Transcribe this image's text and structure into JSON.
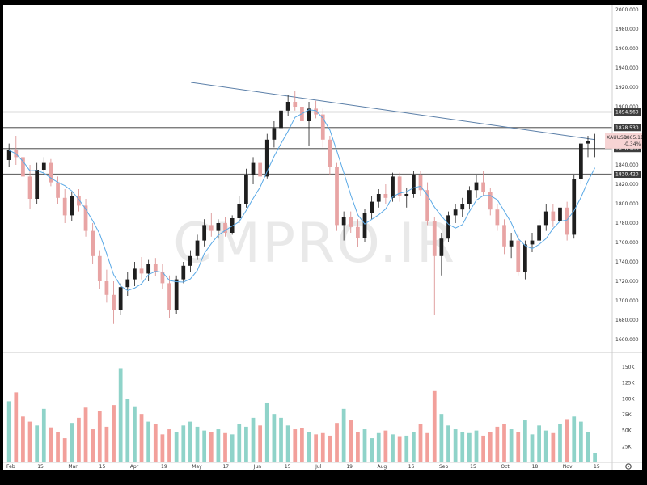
{
  "chart_data": {
    "type": "candlestick",
    "symbol": "XAUUSD",
    "last_price": "1865.115",
    "change_pct": "-0.34%",
    "watermark": "CMPRO.IR",
    "ylim": [
      1650,
      2000
    ],
    "y_ticks": [
      "2000.000",
      "1980.000",
      "1960.000",
      "1940.000",
      "1920.000",
      "1900.000",
      "1880.000",
      "1860.000",
      "1840.000",
      "1820.000",
      "1800.000",
      "1780.000",
      "1760.000",
      "1740.000",
      "1720.000",
      "1700.000",
      "1680.000",
      "1660.000"
    ],
    "x_ticks": [
      "Feb",
      "15",
      "Mar",
      "15",
      "Apr",
      "19",
      "May",
      "17",
      "Jun",
      "15",
      "Jul",
      "19",
      "Aug",
      "16",
      "Sep",
      "15",
      "Oct",
      "18",
      "Nov",
      "15"
    ],
    "volume_ticks": [
      "150K",
      "125K",
      "100K",
      "75K",
      "50K",
      "25K"
    ],
    "volume_max": 160000,
    "levels": [
      {
        "label": "1894.560",
        "value": 1894.56
      },
      {
        "label": "1878.530",
        "value": 1878.53
      },
      {
        "label": "1856.900",
        "value": 1856.9
      },
      {
        "label": "1830.420",
        "value": 1830.42
      }
    ],
    "trendline": {
      "from": [
        0,
        1925
      ],
      "to": [
        84,
        1866
      ]
    },
    "candles": [
      {
        "o": 1845,
        "h": 1862,
        "l": 1838,
        "c": 1855
      },
      {
        "o": 1855,
        "h": 1870,
        "l": 1840,
        "c": 1848
      },
      {
        "o": 1848,
        "h": 1852,
        "l": 1822,
        "c": 1828
      },
      {
        "o": 1828,
        "h": 1840,
        "l": 1795,
        "c": 1805
      },
      {
        "o": 1805,
        "h": 1842,
        "l": 1800,
        "c": 1835
      },
      {
        "o": 1835,
        "h": 1848,
        "l": 1830,
        "c": 1842
      },
      {
        "o": 1842,
        "h": 1846,
        "l": 1818,
        "c": 1822
      },
      {
        "o": 1822,
        "h": 1828,
        "l": 1800,
        "c": 1806
      },
      {
        "o": 1806,
        "h": 1815,
        "l": 1780,
        "c": 1788
      },
      {
        "o": 1788,
        "h": 1812,
        "l": 1782,
        "c": 1808
      },
      {
        "o": 1808,
        "h": 1815,
        "l": 1792,
        "c": 1798
      },
      {
        "o": 1798,
        "h": 1805,
        "l": 1766,
        "c": 1772
      },
      {
        "o": 1772,
        "h": 1780,
        "l": 1738,
        "c": 1746
      },
      {
        "o": 1746,
        "h": 1752,
        "l": 1712,
        "c": 1720
      },
      {
        "o": 1720,
        "h": 1732,
        "l": 1698,
        "c": 1706
      },
      {
        "o": 1706,
        "h": 1720,
        "l": 1676,
        "c": 1690
      },
      {
        "o": 1690,
        "h": 1718,
        "l": 1685,
        "c": 1714
      },
      {
        "o": 1714,
        "h": 1730,
        "l": 1705,
        "c": 1722
      },
      {
        "o": 1722,
        "h": 1740,
        "l": 1715,
        "c": 1733
      },
      {
        "o": 1733,
        "h": 1745,
        "l": 1722,
        "c": 1728
      },
      {
        "o": 1728,
        "h": 1742,
        "l": 1720,
        "c": 1738
      },
      {
        "o": 1738,
        "h": 1744,
        "l": 1725,
        "c": 1730
      },
      {
        "o": 1730,
        "h": 1738,
        "l": 1712,
        "c": 1718
      },
      {
        "o": 1718,
        "h": 1726,
        "l": 1682,
        "c": 1690
      },
      {
        "o": 1690,
        "h": 1726,
        "l": 1686,
        "c": 1722
      },
      {
        "o": 1722,
        "h": 1740,
        "l": 1718,
        "c": 1736
      },
      {
        "o": 1736,
        "h": 1752,
        "l": 1730,
        "c": 1746
      },
      {
        "o": 1746,
        "h": 1768,
        "l": 1742,
        "c": 1762
      },
      {
        "o": 1762,
        "h": 1784,
        "l": 1756,
        "c": 1778
      },
      {
        "o": 1778,
        "h": 1790,
        "l": 1766,
        "c": 1772
      },
      {
        "o": 1772,
        "h": 1784,
        "l": 1764,
        "c": 1780
      },
      {
        "o": 1780,
        "h": 1786,
        "l": 1766,
        "c": 1770
      },
      {
        "o": 1770,
        "h": 1788,
        "l": 1768,
        "c": 1785
      },
      {
        "o": 1785,
        "h": 1808,
        "l": 1780,
        "c": 1800
      },
      {
        "o": 1800,
        "h": 1836,
        "l": 1796,
        "c": 1830
      },
      {
        "o": 1830,
        "h": 1848,
        "l": 1820,
        "c": 1842
      },
      {
        "o": 1842,
        "h": 1850,
        "l": 1822,
        "c": 1828
      },
      {
        "o": 1828,
        "h": 1872,
        "l": 1826,
        "c": 1866
      },
      {
        "o": 1866,
        "h": 1885,
        "l": 1858,
        "c": 1878
      },
      {
        "o": 1878,
        "h": 1900,
        "l": 1872,
        "c": 1896
      },
      {
        "o": 1896,
        "h": 1912,
        "l": 1890,
        "c": 1905
      },
      {
        "o": 1905,
        "h": 1916,
        "l": 1896,
        "c": 1900
      },
      {
        "o": 1900,
        "h": 1910,
        "l": 1880,
        "c": 1885
      },
      {
        "o": 1885,
        "h": 1905,
        "l": 1860,
        "c": 1898
      },
      {
        "o": 1898,
        "h": 1906,
        "l": 1888,
        "c": 1892
      },
      {
        "o": 1892,
        "h": 1898,
        "l": 1858,
        "c": 1866
      },
      {
        "o": 1866,
        "h": 1870,
        "l": 1830,
        "c": 1838
      },
      {
        "o": 1838,
        "h": 1842,
        "l": 1772,
        "c": 1778
      },
      {
        "o": 1778,
        "h": 1792,
        "l": 1762,
        "c": 1786
      },
      {
        "o": 1786,
        "h": 1792,
        "l": 1770,
        "c": 1776
      },
      {
        "o": 1776,
        "h": 1784,
        "l": 1755,
        "c": 1765
      },
      {
        "o": 1765,
        "h": 1795,
        "l": 1760,
        "c": 1790
      },
      {
        "o": 1790,
        "h": 1808,
        "l": 1784,
        "c": 1802
      },
      {
        "o": 1802,
        "h": 1815,
        "l": 1796,
        "c": 1810
      },
      {
        "o": 1810,
        "h": 1820,
        "l": 1800,
        "c": 1806
      },
      {
        "o": 1806,
        "h": 1832,
        "l": 1802,
        "c": 1828
      },
      {
        "o": 1828,
        "h": 1832,
        "l": 1802,
        "c": 1808
      },
      {
        "o": 1808,
        "h": 1816,
        "l": 1796,
        "c": 1810
      },
      {
        "o": 1810,
        "h": 1834,
        "l": 1806,
        "c": 1830
      },
      {
        "o": 1830,
        "h": 1834,
        "l": 1808,
        "c": 1814
      },
      {
        "o": 1814,
        "h": 1822,
        "l": 1778,
        "c": 1782
      },
      {
        "o": 1782,
        "h": 1786,
        "l": 1685,
        "c": 1746
      },
      {
        "o": 1746,
        "h": 1770,
        "l": 1726,
        "c": 1764
      },
      {
        "o": 1764,
        "h": 1792,
        "l": 1760,
        "c": 1788
      },
      {
        "o": 1788,
        "h": 1800,
        "l": 1780,
        "c": 1794
      },
      {
        "o": 1794,
        "h": 1806,
        "l": 1786,
        "c": 1800
      },
      {
        "o": 1800,
        "h": 1818,
        "l": 1794,
        "c": 1814
      },
      {
        "o": 1814,
        "h": 1830,
        "l": 1806,
        "c": 1822
      },
      {
        "o": 1822,
        "h": 1834,
        "l": 1808,
        "c": 1812
      },
      {
        "o": 1812,
        "h": 1816,
        "l": 1788,
        "c": 1794
      },
      {
        "o": 1794,
        "h": 1800,
        "l": 1772,
        "c": 1778
      },
      {
        "o": 1778,
        "h": 1784,
        "l": 1748,
        "c": 1756
      },
      {
        "o": 1756,
        "h": 1770,
        "l": 1744,
        "c": 1762
      },
      {
        "o": 1762,
        "h": 1768,
        "l": 1726,
        "c": 1730
      },
      {
        "o": 1730,
        "h": 1762,
        "l": 1722,
        "c": 1758
      },
      {
        "o": 1758,
        "h": 1770,
        "l": 1750,
        "c": 1762
      },
      {
        "o": 1762,
        "h": 1784,
        "l": 1756,
        "c": 1778
      },
      {
        "o": 1778,
        "h": 1800,
        "l": 1772,
        "c": 1792
      },
      {
        "o": 1792,
        "h": 1800,
        "l": 1776,
        "c": 1782
      },
      {
        "o": 1782,
        "h": 1800,
        "l": 1778,
        "c": 1796
      },
      {
        "o": 1796,
        "h": 1802,
        "l": 1762,
        "c": 1768
      },
      {
        "o": 1768,
        "h": 1830,
        "l": 1764,
        "c": 1825
      },
      {
        "o": 1825,
        "h": 1866,
        "l": 1820,
        "c": 1862
      },
      {
        "o": 1862,
        "h": 1870,
        "l": 1848,
        "c": 1865
      },
      {
        "o": 1865,
        "h": 1872,
        "l": 1848,
        "c": 1865
      }
    ],
    "volumes": [
      96000,
      110000,
      72000,
      64000,
      58000,
      84000,
      55000,
      48000,
      38000,
      62000,
      70000,
      86000,
      52000,
      80000,
      56000,
      90000,
      148000,
      100000,
      88000,
      76000,
      64000,
      60000,
      44000,
      52000,
      48000,
      58000,
      64000,
      56000,
      50000,
      48000,
      52000,
      46000,
      44000,
      60000,
      56000,
      70000,
      58000,
      94000,
      76000,
      70000,
      58000,
      52000,
      54000,
      48000,
      44000,
      46000,
      42000,
      62000,
      84000,
      66000,
      48000,
      52000,
      38000,
      46000,
      50000,
      44000,
      40000,
      42000,
      48000,
      60000,
      46000,
      112000,
      76000,
      58000,
      52000,
      48000,
      46000,
      50000,
      42000,
      48000,
      56000,
      60000,
      52000,
      48000,
      66000,
      44000,
      58000,
      50000,
      46000,
      60000,
      68000,
      72000,
      64000,
      48000,
      14000
    ]
  }
}
